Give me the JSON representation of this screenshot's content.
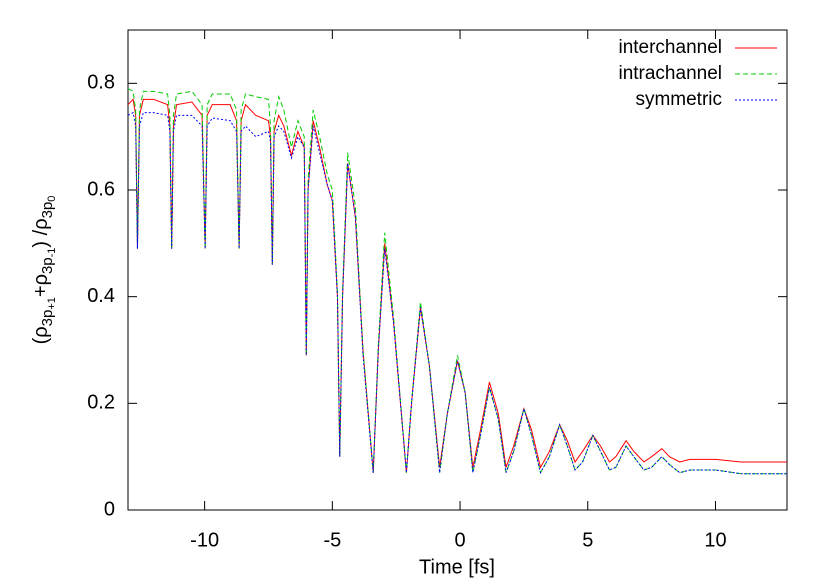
{
  "chart_data": {
    "type": "line",
    "xlabel": "Time [fs]",
    "ylabel_parts": [
      "(ρ",
      "3p",
      "+1",
      "+ρ",
      "3p",
      "-1",
      ") /ρ",
      "3p",
      "0"
    ],
    "xlim": [
      -13,
      12.8
    ],
    "ylim": [
      0,
      0.9
    ],
    "xticks": [
      -10,
      -5,
      0,
      5,
      10
    ],
    "yticks": [
      0,
      0.2,
      0.4,
      0.6,
      0.8
    ],
    "legend": "top-right",
    "x": [
      -13,
      -12.8,
      -12.7,
      -12.63,
      -12.55,
      -12.4,
      -12,
      -11.45,
      -11.36,
      -11.29,
      -11.22,
      -11.1,
      -10.5,
      -10.1,
      -9.98,
      -9.9,
      -9.7,
      -9.0,
      -8.75,
      -8.65,
      -8.57,
      -8.4,
      -8.0,
      -7.5,
      -7.42,
      -7.35,
      -7.28,
      -7.1,
      -6.9,
      -6.6,
      -6.35,
      -6.1,
      -6.02,
      -5.95,
      -5.75,
      -5.5,
      -5.2,
      -5.0,
      -4.8,
      -4.71,
      -4.6,
      -4.4,
      -4.1,
      -3.8,
      -3.4,
      -3.2,
      -2.95,
      -2.6,
      -2.1,
      -1.9,
      -1.55,
      -1.2,
      -0.8,
      -0.5,
      -0.1,
      0.2,
      0.5,
      0.8,
      1.15,
      1.5,
      1.8,
      2.1,
      2.5,
      2.8,
      3.15,
      3.5,
      3.9,
      4.2,
      4.5,
      4.8,
      5.2,
      5.5,
      5.85,
      6.1,
      6.5,
      6.8,
      7.2,
      7.5,
      7.9,
      8.2,
      8.6,
      9.0,
      10.0,
      11.0,
      12.0,
      12.8
    ],
    "series": [
      {
        "name": "interchannel",
        "color": "#ff0000",
        "dash": "solid",
        "values": [
          0.76,
          0.77,
          0.74,
          0.49,
          0.74,
          0.77,
          0.77,
          0.76,
          0.72,
          0.49,
          0.72,
          0.76,
          0.765,
          0.74,
          0.49,
          0.74,
          0.76,
          0.76,
          0.73,
          0.49,
          0.73,
          0.76,
          0.74,
          0.73,
          0.7,
          0.46,
          0.71,
          0.74,
          0.72,
          0.665,
          0.71,
          0.68,
          0.29,
          0.6,
          0.73,
          0.68,
          0.61,
          0.58,
          0.4,
          0.1,
          0.4,
          0.65,
          0.55,
          0.3,
          0.07,
          0.3,
          0.5,
          0.35,
          0.07,
          0.2,
          0.38,
          0.27,
          0.08,
          0.18,
          0.28,
          0.22,
          0.08,
          0.15,
          0.24,
          0.18,
          0.08,
          0.12,
          0.19,
          0.15,
          0.08,
          0.11,
          0.16,
          0.13,
          0.09,
          0.11,
          0.14,
          0.12,
          0.09,
          0.1,
          0.13,
          0.11,
          0.09,
          0.1,
          0.115,
          0.1,
          0.09,
          0.095,
          0.095,
          0.09,
          0.09,
          0.09
        ]
      },
      {
        "name": "intrachannel",
        "color": "#00cc00",
        "dash": "dashed",
        "values": [
          0.79,
          0.785,
          0.75,
          0.49,
          0.75,
          0.785,
          0.785,
          0.78,
          0.74,
          0.49,
          0.74,
          0.78,
          0.785,
          0.76,
          0.49,
          0.76,
          0.78,
          0.78,
          0.75,
          0.49,
          0.75,
          0.78,
          0.775,
          0.77,
          0.72,
          0.46,
          0.73,
          0.775,
          0.75,
          0.68,
          0.73,
          0.7,
          0.29,
          0.62,
          0.75,
          0.7,
          0.63,
          0.6,
          0.41,
          0.1,
          0.41,
          0.67,
          0.57,
          0.3,
          0.07,
          0.31,
          0.52,
          0.36,
          0.07,
          0.2,
          0.39,
          0.27,
          0.07,
          0.18,
          0.29,
          0.22,
          0.07,
          0.14,
          0.23,
          0.17,
          0.07,
          0.11,
          0.19,
          0.14,
          0.07,
          0.1,
          0.16,
          0.12,
          0.075,
          0.09,
          0.14,
          0.11,
          0.075,
          0.08,
          0.12,
          0.1,
          0.075,
          0.08,
          0.1,
          0.085,
          0.07,
          0.075,
          0.075,
          0.068,
          0.068,
          0.068
        ]
      },
      {
        "name": "symmetric",
        "color": "#0000ff",
        "dash": "dotted",
        "values": [
          0.74,
          0.745,
          0.72,
          0.49,
          0.72,
          0.745,
          0.745,
          0.74,
          0.71,
          0.49,
          0.71,
          0.74,
          0.74,
          0.72,
          0.49,
          0.72,
          0.735,
          0.73,
          0.71,
          0.49,
          0.71,
          0.72,
          0.7,
          0.71,
          0.69,
          0.46,
          0.7,
          0.72,
          0.71,
          0.66,
          0.7,
          0.68,
          0.29,
          0.6,
          0.72,
          0.67,
          0.61,
          0.58,
          0.4,
          0.1,
          0.4,
          0.65,
          0.55,
          0.29,
          0.07,
          0.3,
          0.49,
          0.35,
          0.07,
          0.2,
          0.38,
          0.27,
          0.07,
          0.18,
          0.28,
          0.22,
          0.07,
          0.14,
          0.23,
          0.17,
          0.07,
          0.11,
          0.19,
          0.14,
          0.07,
          0.1,
          0.16,
          0.12,
          0.075,
          0.09,
          0.14,
          0.11,
          0.075,
          0.08,
          0.12,
          0.1,
          0.075,
          0.08,
          0.1,
          0.085,
          0.07,
          0.075,
          0.075,
          0.068,
          0.068,
          0.068
        ]
      }
    ]
  }
}
